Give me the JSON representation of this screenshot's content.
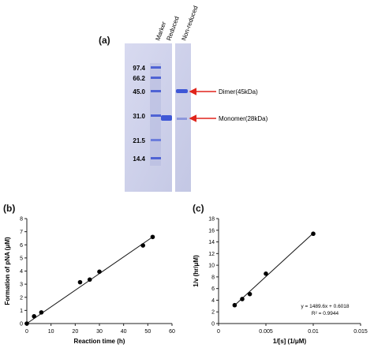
{
  "figure": {
    "panel_a": {
      "label": "(a)",
      "lane_headers": [
        "Marker",
        "Reduced",
        "Non-reduced"
      ],
      "marker_kda": [
        "97.4",
        "66.2",
        "45.0",
        "31.0",
        "21.5",
        "14.4"
      ],
      "annotations": [
        {
          "text": "Dimer(45kDa)"
        },
        {
          "text": "Monomer(28kDa)"
        }
      ],
      "colors": {
        "gel": "#cfd2ea",
        "band": "#3e57d6",
        "arrow": "#e0241b"
      }
    },
    "panel_b": {
      "label": "(b)"
    },
    "panel_c": {
      "label": "(c)"
    }
  },
  "chart_data": [
    {
      "type": "scatter",
      "panel": "(b)",
      "xlabel": "Reaction time (h)",
      "ylabel": "Formation of pNA (μM)",
      "xlim": [
        0,
        60
      ],
      "ylim": [
        0,
        8
      ],
      "xticks": [
        "0",
        "10",
        "20",
        "30",
        "40",
        "50",
        "60"
      ],
      "yticks": [
        "0",
        "1",
        "2",
        "3",
        "4",
        "5",
        "6",
        "7",
        "8"
      ],
      "x": [
        0,
        3,
        6,
        22,
        26,
        30,
        48,
        52
      ],
      "y": [
        0,
        0.55,
        0.85,
        3.15,
        3.35,
        3.95,
        5.95,
        6.6
      ],
      "trendline": {
        "x": [
          0,
          52
        ],
        "y": [
          0,
          6.6
        ]
      }
    },
    {
      "type": "scatter",
      "panel": "(c)",
      "xlabel": "1/[s] (1/μM)",
      "ylabel": "1/v (hr/μM)",
      "xlim": [
        0,
        0.015
      ],
      "ylim": [
        0,
        18
      ],
      "xticks": [
        "0",
        "0.005",
        "0.01",
        "0.015"
      ],
      "yticks": [
        "0",
        "2",
        "4",
        "6",
        "8",
        "10",
        "12",
        "14",
        "16",
        "18"
      ],
      "x": [
        0.0017,
        0.0025,
        0.0033,
        0.005,
        0.01
      ],
      "y": [
        3.15,
        4.2,
        5.05,
        8.55,
        15.4
      ],
      "trendline": {
        "x": [
          0.0017,
          0.01
        ],
        "y": [
          3.13,
          15.5
        ]
      },
      "equation": "y = 1489.6x + 0.6018",
      "r2": "R² = 0.9944"
    }
  ]
}
